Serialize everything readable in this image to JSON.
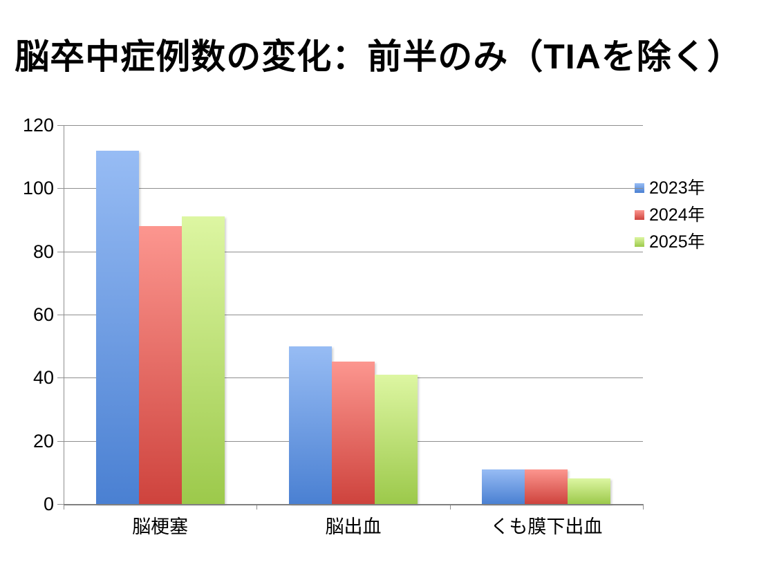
{
  "title": "脳卒中症例数の変化：前半のみ（TIAを除く）",
  "chart_data": {
    "type": "bar",
    "title": "脳卒中症例数の変化：前半のみ（TIAを除く）",
    "categories": [
      "脳梗塞",
      "脳出血",
      "くも膜下出血"
    ],
    "series": [
      {
        "name": "2023年",
        "values": [
          112,
          50,
          11
        ],
        "color_top": "#97BCF4",
        "color_bottom": "#4A80D2"
      },
      {
        "name": "2024年",
        "values": [
          88,
          45,
          11
        ],
        "color_top": "#FC968F",
        "color_bottom": "#CE433D"
      },
      {
        "name": "2025年",
        "values": [
          91,
          41,
          8
        ],
        "color_top": "#DDF6A2",
        "color_bottom": "#9CC94B"
      }
    ],
    "xlabel": "",
    "ylabel": "",
    "ylim": [
      0,
      120
    ],
    "y_ticks": [
      0,
      20,
      40,
      60,
      80,
      100,
      120
    ],
    "grid": true,
    "legend_position": "right",
    "background_color": "#FFFFFF",
    "gridline_color": "#8E8E8E"
  }
}
